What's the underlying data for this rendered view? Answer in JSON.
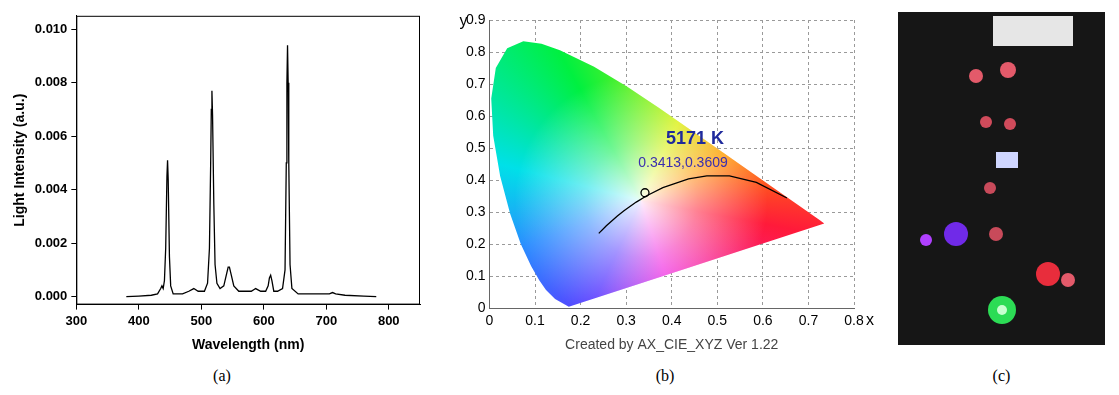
{
  "chart_data": [
    {
      "panel": "(a)",
      "type": "line",
      "x_label": "Wavelength (nm)",
      "y_label": "Light Intensity (a.u.)",
      "x": [
        380,
        400,
        420,
        430,
        435,
        437,
        439,
        441,
        443,
        445,
        446,
        447,
        449,
        451,
        455,
        470,
        480,
        488,
        495,
        505,
        510,
        513,
        515,
        516,
        517,
        518,
        520,
        522,
        525,
        530,
        536,
        540,
        543,
        545,
        548,
        552,
        560,
        570,
        580,
        587,
        595,
        603,
        607,
        609,
        611,
        613,
        616,
        622,
        630,
        634,
        636,
        637,
        638,
        639,
        640,
        642,
        645,
        655,
        680,
        705,
        710,
        715,
        730,
        760,
        780
      ],
      "values": [
        0,
        2e-05,
        5e-05,
        0.0001,
        0.0003,
        0.0004,
        0.0003,
        0.0006,
        0.0018,
        0.0045,
        0.0051,
        0.0044,
        0.0015,
        0.0004,
        0.0001,
        0.0001,
        0.0002,
        0.0003,
        0.0002,
        0.0002,
        0.0005,
        0.0018,
        0.005,
        0.007,
        0.0077,
        0.0068,
        0.0035,
        0.0012,
        0.0005,
        0.0003,
        0.0004,
        0.0008,
        0.0011,
        0.0011,
        0.0008,
        0.0004,
        0.0002,
        0.0002,
        0.0002,
        0.0003,
        0.0002,
        0.0002,
        0.0004,
        0.0007,
        0.0008,
        0.0006,
        0.0002,
        0.0002,
        0.0003,
        0.001,
        0.005,
        0.008,
        0.0094,
        0.008,
        0.005,
        0.0012,
        0.0003,
        0.0001,
        0.0001,
        0.0001,
        0.00015,
        0.0001,
        5e-05,
        2e-05,
        0
      ],
      "color": "#000000",
      "xlim": [
        300,
        850
      ],
      "xticks": [
        300,
        400,
        500,
        600,
        700,
        800
      ],
      "ylim": [
        -0.0003,
        0.0105
      ],
      "yticks": [
        {
          "value": 0,
          "label": "0.000"
        },
        {
          "value": 0.002,
          "label": "0.002"
        },
        {
          "value": 0.004,
          "label": "0.004"
        },
        {
          "value": 0.006,
          "label": "0.006"
        },
        {
          "value": 0.008,
          "label": "0.008"
        },
        {
          "value": 0.01,
          "label": "0.010"
        }
      ],
      "grid": false
    },
    {
      "panel": "(b)",
      "type": "scatter",
      "x_label": "x",
      "y_label": "y",
      "caption": "Created by AX_CIE_XYZ Ver 1.22",
      "xlim": [
        0,
        0.8
      ],
      "xticks": [
        0,
        0.1,
        0.2,
        0.3,
        0.4,
        0.5,
        0.6,
        0.7,
        0.8
      ],
      "ylim": [
        0,
        0.9
      ],
      "yticks": [
        0,
        0.1,
        0.2,
        0.3,
        0.4,
        0.5,
        0.6,
        0.7,
        0.8,
        0.9
      ],
      "grid": true,
      "series": [
        {
          "type": "area",
          "x": [
            0.1741,
            0.144,
            0.1241,
            0.1096,
            0.0913,
            0.0687,
            0.0454,
            0.0235,
            0.0082,
            0.0039,
            0.0139,
            0.0389,
            0.0743,
            0.1142,
            0.1547,
            0.2296,
            0.3016,
            0.3731,
            0.4441,
            0.5125,
            0.5752,
            0.627,
            0.6915,
            0.726,
            0.7347
          ],
          "values": [
            0.005,
            0.0297,
            0.0578,
            0.0868,
            0.1327,
            0.2007,
            0.295,
            0.4127,
            0.5384,
            0.6548,
            0.7502,
            0.812,
            0.8338,
            0.8262,
            0.8059,
            0.7543,
            0.6923,
            0.6245,
            0.5547,
            0.4866,
            0.4242,
            0.3725,
            0.3083,
            0.274,
            0.2653
          ]
        },
        {
          "type": "line",
          "color": "#000000",
          "x": [
            0.6528,
            0.5857,
            0.5267,
            0.477,
            0.4369,
            0.3805,
            0.3451,
            0.3221,
            0.2952,
            0.2807,
            0.2565,
            0.2399
          ],
          "values": [
            0.3444,
            0.3931,
            0.4133,
            0.4137,
            0.4041,
            0.3768,
            0.3516,
            0.3318,
            0.3048,
            0.2883,
            0.2577,
            0.2342
          ]
        },
        {
          "type": "scatter",
          "marker": "circle",
          "color": "#000000",
          "x": [
            0.3413
          ],
          "values": [
            0.3609
          ]
        }
      ],
      "annotations": [
        {
          "text": "5171 K",
          "color": "#1f2a9c"
        },
        {
          "text": "0.3413,0.3609",
          "color": "#3b2fae"
        }
      ]
    }
  ],
  "photo": {
    "panel": "(c)"
  }
}
